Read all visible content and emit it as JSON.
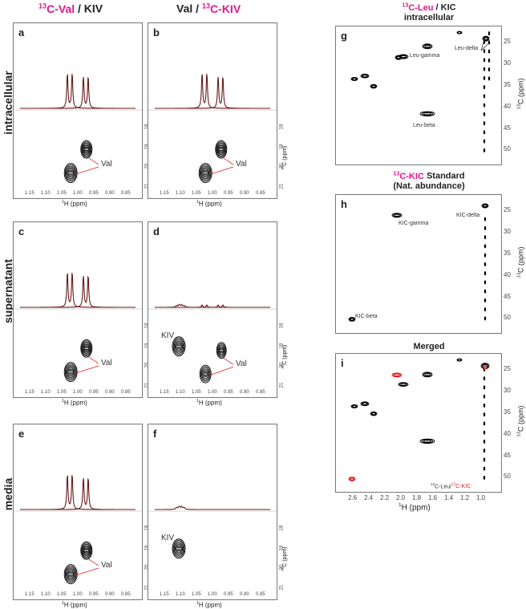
{
  "columns": {
    "left": {
      "iso": "13",
      "label_mag": "C-Val",
      "label_rest": " / KIV"
    },
    "mid": {
      "label_rest": "Val / ",
      "iso": "13",
      "label_mag": "C-KIV"
    }
  },
  "rows": [
    "intracellular",
    "supernatant",
    "media"
  ],
  "panels": {
    "a": {
      "letter": "a",
      "annot": "Val"
    },
    "b": {
      "letter": "b",
      "annot": "Val"
    },
    "c": {
      "letter": "c",
      "annot": "Val"
    },
    "d": {
      "letter": "d",
      "annot_val": "Val",
      "annot_kiv": "KIV"
    },
    "e": {
      "letter": "e",
      "annot": "Val"
    },
    "f": {
      "letter": "f",
      "annot_kiv": "KIV"
    },
    "g": {
      "letter": "g",
      "title_iso": "13",
      "title_mag": "C-Leu",
      "title_rest": " / KIC",
      "title2": "intracellular",
      "labels": [
        "Leu-gamma",
        "Leu-delta",
        "Leu-beta"
      ]
    },
    "h": {
      "letter": "h",
      "title_iso": "13",
      "title_mag": "C-KIC",
      "title_rest": " Standard",
      "title2": "(Nat. abundance)",
      "labels": [
        "KIC-gamma",
        "KIC-delta",
        "KIC-beta"
      ]
    },
    "i": {
      "letter": "i",
      "title": "Merged",
      "legend_iso1": "13",
      "legend_a": "C-Leu/",
      "legend_iso2": "13",
      "legend_b": "C-KIC"
    }
  },
  "small_axes": {
    "x_ticks": [
      "1.15",
      "1.10",
      "1.05",
      "1.00",
      "0.95",
      "0.90",
      "0.85"
    ],
    "x_label_iso": "1",
    "x_label": "H (ppm)",
    "y_ticks": [
      "18",
      "19",
      "20",
      "21"
    ],
    "y_label_iso": "13",
    "y_label": "C (ppm)"
  },
  "big_axes": {
    "x_ticks": [
      "2.6",
      "2.4",
      "2.2",
      "2.0",
      "1.8",
      "1.6",
      "1.4",
      "1.2",
      "1.0"
    ],
    "x_label_iso": "1",
    "x_label": "H (ppm)",
    "y_ticks": [
      "25",
      "30",
      "35",
      "40",
      "45",
      "50"
    ],
    "y_label_iso": "13",
    "y_label": "C (ppm)"
  },
  "colors": {
    "accent_magenta": "#e0198c",
    "spectrum_dark_red": "#6b1a1a",
    "kic_red": "#e02020",
    "contour": "#000000"
  }
}
